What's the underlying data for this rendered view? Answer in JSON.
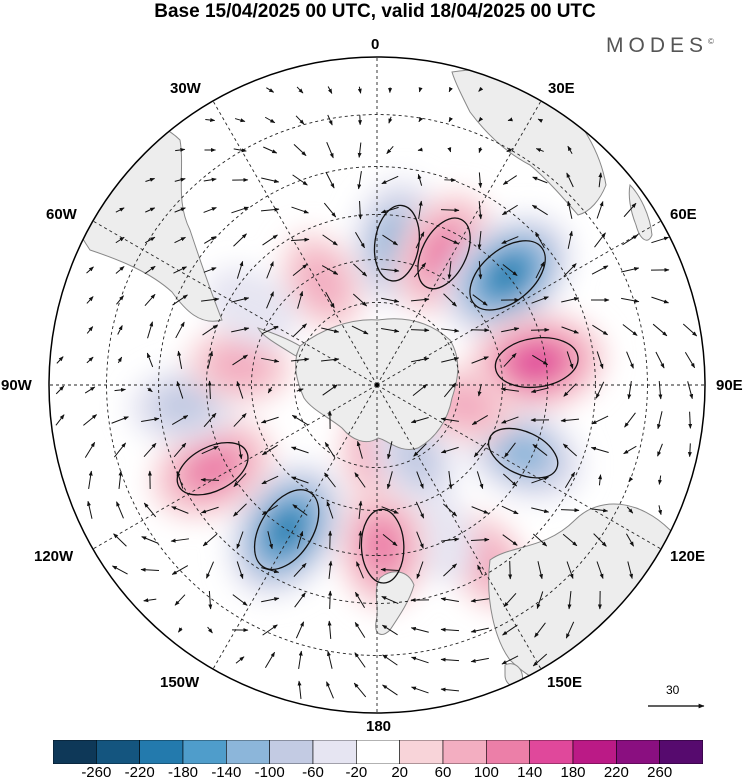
{
  "title": "Base 15/04/2025 00 UTC, valid 18/04/2025 00 UTC",
  "brand": "MODES",
  "brand_mark": "©",
  "longitudes": {
    "n0": "0",
    "n30e": "30E",
    "n60e": "60E",
    "n90e": "90E",
    "n120e": "120E",
    "n150e": "150E",
    "n180": "180",
    "n150w": "150W",
    "n120w": "120W",
    "n90w": "90W",
    "n60w": "60W",
    "n30w": "30W"
  },
  "reference_vector": "30",
  "colorbar": {
    "labels": [
      "-260",
      "-220",
      "-180",
      "-140",
      "-100",
      "-60",
      "-20",
      "20",
      "60",
      "100",
      "140",
      "180",
      "220",
      "260"
    ],
    "colors": [
      "#0e3858",
      "#14557f",
      "#237aad",
      "#4f9dcb",
      "#8cb6da",
      "#c3cbe3",
      "#e6e5f2",
      "#ffffff",
      "#f8d4d9",
      "#f3aec1",
      "#ec7fa8",
      "#e0489b",
      "#bb1a86",
      "#8a0f80",
      "#560a6e"
    ]
  },
  "pressure_anomalies": [
    {
      "id": "blue-0",
      "lon": 8,
      "lat": -56,
      "value": -150
    },
    {
      "id": "red-15e",
      "lon": 27,
      "lat": -55,
      "value": 150
    },
    {
      "id": "blue-45e",
      "lon": 50,
      "lat": -50,
      "value": -200
    },
    {
      "id": "red-80e",
      "lon": 82,
      "lat": -52,
      "value": 180
    },
    {
      "id": "blue-120e",
      "lon": 115,
      "lat": -52,
      "value": -140
    },
    {
      "id": "red-140e",
      "lon": 148,
      "lat": -42,
      "value": 80
    },
    {
      "id": "blue-160e",
      "lon": 158,
      "lat": -52,
      "value": -60
    },
    {
      "id": "red-180",
      "lon": 178,
      "lat": -52,
      "value": 140
    },
    {
      "id": "blue-150w",
      "lon": -148,
      "lat": -50,
      "value": -200
    },
    {
      "id": "red-120w",
      "lon": -117,
      "lat": -47,
      "value": 150
    },
    {
      "id": "blue-95w",
      "lon": -96,
      "lat": -45,
      "value": -90
    },
    {
      "id": "red-90w",
      "lon": -82,
      "lat": -57,
      "value": 80
    },
    {
      "id": "red-30w",
      "lon": -28,
      "lat": -62,
      "value": 80
    },
    {
      "id": "blue-60w",
      "lon": -58,
      "lat": -55,
      "value": -60
    },
    {
      "id": "red-170e",
      "lon": 178,
      "lat": -74,
      "value": 100
    },
    {
      "id": "blue-150e",
      "lon": 152,
      "lat": -70,
      "value": -80
    },
    {
      "id": "red-100e",
      "lon": 103,
      "lat": -68,
      "value": 80
    }
  ],
  "colors": {
    "land": "#ededed",
    "coast": "#888888",
    "grid": "#222222",
    "vector": "#111111"
  }
}
